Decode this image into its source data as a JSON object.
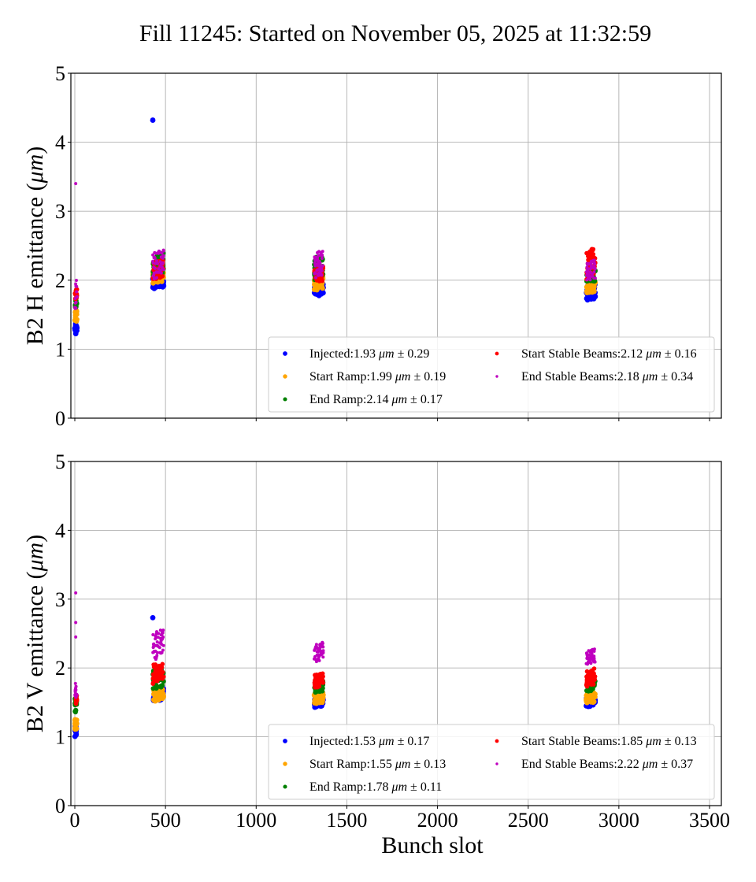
{
  "figure": {
    "title": "Fill 11245: Started on November 05, 2025 at 11:32:59"
  },
  "chart_data": [
    {
      "type": "scatter",
      "panel": "top",
      "title": "",
      "xlabel": "",
      "ylabel": "B2 H emittance (μm)",
      "xlim": [
        -20,
        3560
      ],
      "ylim": [
        0,
        5
      ],
      "x_ticks": [
        0,
        500,
        1000,
        1500,
        2000,
        2500,
        3000,
        3500
      ],
      "x_tick_labels_visible": false,
      "y_ticks": [
        0,
        1,
        2,
        3,
        4,
        5
      ],
      "y_tick_labels": [
        "0",
        "1",
        "2",
        "3",
        "4",
        "5"
      ],
      "grid": true,
      "legend_placement": "lower-right",
      "legend_columns": 2,
      "series": [
        {
          "name": "Injected",
          "legend": "Injected:1.93 μm ± 0.29",
          "color": "#0000ff",
          "mean": 1.93,
          "std": 0.29,
          "clusters": [
            {
              "x_range": [
                0,
                12
              ],
              "y_range": [
                1.2,
                1.4
              ]
            },
            {
              "x_range": [
                430,
                490
              ],
              "y_range": [
                1.87,
                2.05
              ]
            },
            {
              "x_range": [
                1320,
                1370
              ],
              "y_range": [
                1.76,
                1.95
              ]
            },
            {
              "x_range": [
                2820,
                2870
              ],
              "y_range": [
                1.7,
                1.95
              ]
            }
          ],
          "outliers": [
            {
              "x": 430,
              "y": 4.32
            }
          ]
        },
        {
          "name": "Start Ramp",
          "legend": "Start Ramp:1.99 μm ± 0.19",
          "color": "#ffa500",
          "mean": 1.99,
          "std": 0.19,
          "clusters": [
            {
              "x_range": [
                0,
                12
              ],
              "y_range": [
                1.38,
                1.58
              ]
            },
            {
              "x_range": [
                430,
                490
              ],
              "y_range": [
                1.95,
                2.15
              ]
            },
            {
              "x_range": [
                1320,
                1370
              ],
              "y_range": [
                1.85,
                2.05
              ]
            },
            {
              "x_range": [
                2820,
                2870
              ],
              "y_range": [
                1.8,
                2.0
              ]
            }
          ],
          "outliers": []
        },
        {
          "name": "End Ramp",
          "legend": "End Ramp:2.14 μm ± 0.17",
          "color": "#008000",
          "mean": 2.14,
          "std": 0.17,
          "clusters": [
            {
              "x_range": [
                0,
                12
              ],
              "y_range": [
                1.58,
                1.72
              ]
            },
            {
              "x_range": [
                430,
                490
              ],
              "y_range": [
                2.05,
                2.42
              ]
            },
            {
              "x_range": [
                1320,
                1370
              ],
              "y_range": [
                2.0,
                2.38
              ]
            },
            {
              "x_range": [
                2820,
                2870
              ],
              "y_range": [
                1.95,
                2.15
              ]
            }
          ],
          "outliers": []
        },
        {
          "name": "Start Stable Beams",
          "legend": "Start Stable Beams:2.12 μm ± 0.16",
          "color": "#ff0000",
          "mean": 2.12,
          "std": 0.16,
          "clusters": [
            {
              "x_range": [
                0,
                12
              ],
              "y_range": [
                1.68,
                1.9
              ]
            },
            {
              "x_range": [
                430,
                490
              ],
              "y_range": [
                2.0,
                2.3
              ]
            },
            {
              "x_range": [
                1320,
                1370
              ],
              "y_range": [
                1.95,
                2.2
              ]
            },
            {
              "x_range": [
                2820,
                2870
              ],
              "y_range": [
                2.0,
                2.48
              ]
            }
          ],
          "outliers": []
        },
        {
          "name": "End Stable Beams",
          "legend": "End Stable Beams:2.18 μm ± 0.34",
          "color": "#bf00bf",
          "mean": 2.18,
          "std": 0.34,
          "clusters": [
            {
              "x_range": [
                0,
                12
              ],
              "y_range": [
                1.55,
                2.03
              ]
            },
            {
              "x_range": [
                430,
                490
              ],
              "y_range": [
                2.0,
                2.46
              ]
            },
            {
              "x_range": [
                1320,
                1370
              ],
              "y_range": [
                2.0,
                2.45
              ]
            },
            {
              "x_range": [
                2820,
                2870
              ],
              "y_range": [
                1.98,
                2.3
              ]
            }
          ],
          "outliers": [
            {
              "x": 5,
              "y": 3.4
            }
          ]
        }
      ]
    },
    {
      "type": "scatter",
      "panel": "bottom",
      "title": "",
      "xlabel": "Bunch slot",
      "ylabel": "B2 V emittance (μm)",
      "xlim": [
        -20,
        3560
      ],
      "ylim": [
        0,
        5
      ],
      "x_ticks": [
        0,
        500,
        1000,
        1500,
        2000,
        2500,
        3000,
        3500
      ],
      "x_tick_labels": [
        "0",
        "500",
        "1000",
        "1500",
        "2000",
        "2500",
        "3000",
        "3500"
      ],
      "y_ticks": [
        0,
        1,
        2,
        3,
        4,
        5
      ],
      "y_tick_labels": [
        "0",
        "1",
        "2",
        "3",
        "4",
        "5"
      ],
      "grid": true,
      "legend_placement": "lower-right",
      "legend_columns": 2,
      "series": [
        {
          "name": "Injected",
          "legend": "Injected:1.53 μm ± 0.17",
          "color": "#0000ff",
          "mean": 1.53,
          "std": 0.17,
          "clusters": [
            {
              "x_range": [
                0,
                12
              ],
              "y_range": [
                1.0,
                1.2
              ]
            },
            {
              "x_range": [
                430,
                490
              ],
              "y_range": [
                1.5,
                1.7
              ]
            },
            {
              "x_range": [
                1320,
                1370
              ],
              "y_range": [
                1.42,
                1.6
              ]
            },
            {
              "x_range": [
                2820,
                2870
              ],
              "y_range": [
                1.43,
                1.6
              ]
            }
          ],
          "outliers": [
            {
              "x": 430,
              "y": 2.73
            }
          ]
        },
        {
          "name": "Start Ramp",
          "legend": "Start Ramp:1.55 μm ± 0.13",
          "color": "#ffa500",
          "mean": 1.55,
          "std": 0.13,
          "clusters": [
            {
              "x_range": [
                0,
                12
              ],
              "y_range": [
                1.08,
                1.28
              ]
            },
            {
              "x_range": [
                430,
                490
              ],
              "y_range": [
                1.5,
                1.7
              ]
            },
            {
              "x_range": [
                1320,
                1370
              ],
              "y_range": [
                1.47,
                1.65
              ]
            },
            {
              "x_range": [
                2820,
                2870
              ],
              "y_range": [
                1.48,
                1.65
              ]
            }
          ],
          "outliers": []
        },
        {
          "name": "End Ramp",
          "legend": "End Ramp:1.78 μm ± 0.11",
          "color": "#008000",
          "mean": 1.78,
          "std": 0.11,
          "clusters": [
            {
              "x_range": [
                0,
                12
              ],
              "y_range": [
                1.3,
                1.6
              ]
            },
            {
              "x_range": [
                430,
                490
              ],
              "y_range": [
                1.68,
                2.02
              ]
            },
            {
              "x_range": [
                1320,
                1370
              ],
              "y_range": [
                1.63,
                1.85
              ]
            },
            {
              "x_range": [
                2820,
                2870
              ],
              "y_range": [
                1.65,
                1.85
              ]
            }
          ],
          "outliers": []
        },
        {
          "name": "Start Stable Beams",
          "legend": "Start Stable Beams:1.85 μm ± 0.13",
          "color": "#ff0000",
          "mean": 1.85,
          "std": 0.13,
          "clusters": [
            {
              "x_range": [
                0,
                12
              ],
              "y_range": [
                1.43,
                1.6
              ]
            },
            {
              "x_range": [
                430,
                490
              ],
              "y_range": [
                1.75,
                2.1
              ]
            },
            {
              "x_range": [
                1320,
                1370
              ],
              "y_range": [
                1.7,
                1.95
              ]
            },
            {
              "x_range": [
                2820,
                2870
              ],
              "y_range": [
                1.72,
                2.0
              ]
            }
          ],
          "outliers": []
        },
        {
          "name": "End Stable Beams",
          "legend": "End Stable Beams:2.22 μm ± 0.37",
          "color": "#bf00bf",
          "mean": 2.22,
          "std": 0.37,
          "clusters": [
            {
              "x_range": [
                0,
                12
              ],
              "y_range": [
                1.5,
                1.87
              ]
            },
            {
              "x_range": [
                430,
                490
              ],
              "y_range": [
                2.1,
                2.58
              ]
            },
            {
              "x_range": [
                1320,
                1370
              ],
              "y_range": [
                2.08,
                2.38
              ]
            },
            {
              "x_range": [
                2820,
                2870
              ],
              "y_range": [
                2.05,
                2.28
              ]
            }
          ],
          "outliers": [
            {
              "x": 5,
              "y": 3.09
            },
            {
              "x": 5,
              "y": 2.66
            },
            {
              "x": 5,
              "y": 2.45
            }
          ]
        }
      ]
    }
  ]
}
